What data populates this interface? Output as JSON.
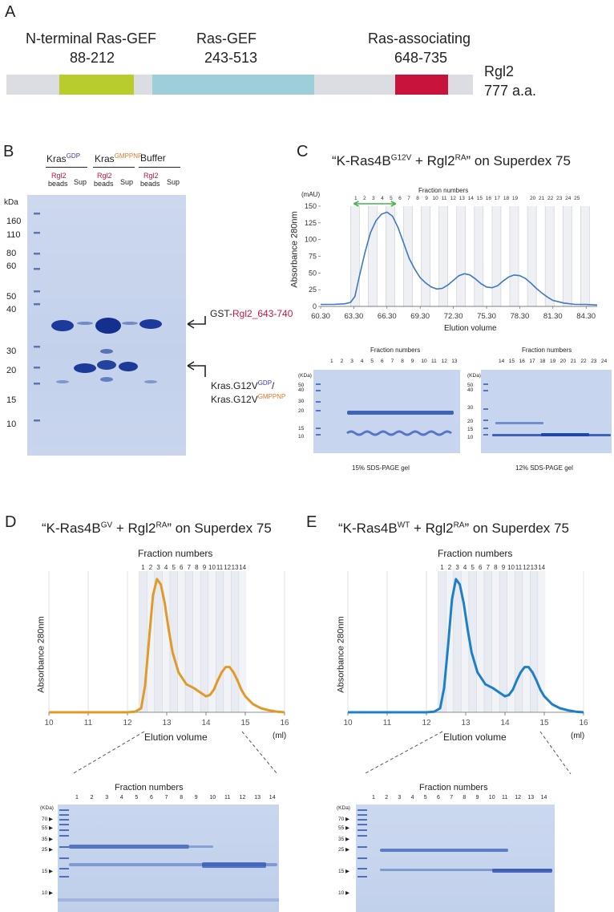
{
  "panelA": {
    "letter": "A",
    "domains": [
      {
        "name": "N-terminal Ras-GEF",
        "range": "88-212",
        "color": "#b8cc2c",
        "start": 88,
        "end": 212
      },
      {
        "name": "Ras-GEF",
        "range": "243-513",
        "color": "#9ecfd9",
        "start": 243,
        "end": 513
      },
      {
        "name": "Ras-associating",
        "range": "648-735",
        "color": "#c8143c",
        "start": 648,
        "end": 735
      }
    ],
    "protein": "Rgl2",
    "length": "777 a.a.",
    "total": 777
  },
  "panelB": {
    "letter": "B",
    "kda_label": "kDa",
    "markers": [
      "160",
      "110",
      "80",
      "60",
      "50",
      "40",
      "30",
      "20",
      "15",
      "10"
    ],
    "groups": [
      {
        "name": "Kras",
        "sup": "GDP",
        "sup_color": "#3a3ab0"
      },
      {
        "name": "Kras",
        "sup": "GMPPNP",
        "sup_color": "#e07a2a"
      },
      {
        "name": "Buffer",
        "sup": "",
        "sup_color": "#222222"
      }
    ],
    "lane_top": "Rgl2",
    "lane_bead": "beads",
    "lane_sup": "Sup",
    "annot1_prefix": "GST-",
    "annot1_red": "Rgl2_643-740",
    "annot2_line1_a": "Kras.G12V",
    "annot2_line1_sup": "GDP",
    "annot2_line1_b": "/",
    "annot2_line2_a": "Kras.G12V",
    "annot2_line2_sup": "GMPPNP"
  },
  "panelC": {
    "letter": "C",
    "title_a": "“K-Ras4B",
    "title_sup1": "G12V",
    "title_b": " + Rgl2",
    "title_sup2": "RA",
    "title_c": "” on Superdex 75",
    "y_unit": "(mAU)",
    "ylabel": "Absorbance 280nm",
    "xlabel": "Elution volume",
    "frac_title": "Fraction numbers",
    "frac_labels": [
      "1",
      "2",
      "3",
      "4",
      "5",
      "6",
      "7",
      "8",
      "9",
      "10",
      "11",
      "12",
      "13",
      "14",
      "15",
      "16",
      "17",
      "18",
      "19",
      "20",
      "21",
      "22",
      "23",
      "24",
      "25"
    ],
    "gel1_frac_title": "Fraction numbers",
    "gel1_lanes": [
      "1",
      "2",
      "3",
      "4",
      "5",
      "6",
      "7",
      "8",
      "9",
      "10",
      "11",
      "12",
      "13"
    ],
    "gel1_markers": [
      "(KDa)",
      "50",
      "40",
      "30",
      "20",
      "15",
      "10"
    ],
    "gel1_caption": "15% SDS-PAGE gel",
    "gel2_frac_title": "Fraction numbers",
    "gel2_lanes": [
      "14",
      "15",
      "16",
      "17",
      "18",
      "19",
      "20",
      "21",
      "22",
      "23",
      "24"
    ],
    "gel2_markers": [
      "(KDa)",
      "50",
      "40",
      "30",
      "20",
      "15",
      "10"
    ],
    "gel2_caption": "12% SDS-PAGE gel"
  },
  "panelD": {
    "letter": "D",
    "title_a": "“K-Ras4B",
    "title_sup1": "GV",
    "title_b": " + Rgl2",
    "title_sup2": "RA",
    "title_c": "” on Superdex 75",
    "frac_title": "Fraction numbers",
    "frac_labels": [
      "1",
      "2",
      "3",
      "4",
      "5",
      "6",
      "7",
      "8",
      "9",
      "10",
      "11",
      "12",
      "13",
      "14"
    ],
    "ylabel": "Absorbance 280nm",
    "xlabel": "Elution volume",
    "x_unit": "(ml)",
    "gel_frac_title": "Fraction numbers",
    "gel_lanes": [
      "1",
      "2",
      "3",
      "4",
      "5",
      "6",
      "7",
      "8",
      "9",
      "10",
      "11",
      "12",
      "13",
      "14"
    ],
    "gel_markers": [
      "(KDa)",
      "70",
      "55",
      "35",
      "25",
      "15",
      "10"
    ],
    "color": "#e09a2a"
  },
  "panelE": {
    "letter": "E",
    "title_a": "“K-Ras4B",
    "title_sup1": "WT",
    "title_b": " + Rgl2",
    "title_sup2": "RA",
    "title_c": "” on Superdex 75",
    "frac_title": "Fraction numbers",
    "frac_labels": [
      "1",
      "2",
      "3",
      "4",
      "5",
      "6",
      "7",
      "8",
      "9",
      "10",
      "11",
      "12",
      "13",
      "14"
    ],
    "ylabel": "Absorbance 280nm",
    "xlabel": "Elution volume",
    "x_unit": "(ml)",
    "gel_frac_title": "Fraction numbers",
    "gel_lanes": [
      "1",
      "2",
      "3",
      "4",
      "5",
      "6",
      "7",
      "8",
      "9",
      "10",
      "11",
      "12",
      "13",
      "14"
    ],
    "gel_markers": [
      "(KDa)",
      "70",
      "55",
      "35",
      "25",
      "15",
      "10"
    ],
    "color": "#1e7fc8"
  },
  "chart_data": [
    {
      "type": "line",
      "id": "C",
      "title": "“K-Ras4BG12V + Rgl2RA” on Superdex 75",
      "xlabel": "Elution volume",
      "ylabel": "Absorbance 280nm",
      "xlim": [
        60.3,
        85.3
      ],
      "ylim": [
        0,
        150
      ],
      "x_ticks": [
        "60.30",
        "63.30",
        "66.30",
        "69.30",
        "72.30",
        "75.30",
        "78.30",
        "81.30",
        "84.30"
      ],
      "y_ticks": [
        "0",
        "25",
        "50",
        "75",
        "100",
        "125",
        "150"
      ],
      "x": [
        60.3,
        61.5,
        62.5,
        63.0,
        63.4,
        63.8,
        64.3,
        64.8,
        65.3,
        65.8,
        66.3,
        66.8,
        67.3,
        67.8,
        68.3,
        68.8,
        69.3,
        69.8,
        70.3,
        70.8,
        71.3,
        71.8,
        72.3,
        72.8,
        73.3,
        73.8,
        74.3,
        74.8,
        75.3,
        75.8,
        76.3,
        76.8,
        77.3,
        77.8,
        78.3,
        78.8,
        79.3,
        79.8,
        80.3,
        80.8,
        81.3,
        82.3,
        83.3,
        84.3,
        85.3
      ],
      "y": [
        3,
        3,
        4,
        6,
        15,
        45,
        80,
        110,
        128,
        138,
        141,
        135,
        118,
        95,
        72,
        56,
        43,
        35,
        29,
        26,
        27,
        32,
        39,
        46,
        49,
        47,
        41,
        34,
        29,
        28,
        31,
        38,
        44,
        47,
        46,
        42,
        35,
        27,
        20,
        14,
        9,
        5,
        3,
        3,
        2
      ],
      "series": [
        {
          "name": "A280",
          "color": "#3d78c2"
        }
      ]
    },
    {
      "type": "line",
      "id": "D",
      "title": "“K-Ras4BGV + Rgl2RA” on Superdex 75",
      "xlabel": "Elution volume",
      "ylabel": "Absorbance 280nm",
      "xlim": [
        10,
        16
      ],
      "x_ticks": [
        "10",
        "11",
        "12",
        "13",
        "14",
        "15",
        "16"
      ],
      "x": [
        10,
        11,
        12,
        12.2,
        12.35,
        12.45,
        12.55,
        12.65,
        12.75,
        12.85,
        12.95,
        13.05,
        13.15,
        13.3,
        13.5,
        13.7,
        13.85,
        14.0,
        14.1,
        14.2,
        14.3,
        14.4,
        14.5,
        14.6,
        14.7,
        14.8,
        14.9,
        15.0,
        15.2,
        15.4,
        15.6,
        15.8,
        16
      ],
      "y": [
        0,
        0,
        0,
        0.5,
        3,
        20,
        55,
        88,
        100,
        96,
        82,
        62,
        45,
        30,
        21,
        18,
        15,
        12,
        13,
        17,
        24,
        30,
        34,
        34,
        30,
        24,
        17,
        12,
        6,
        3,
        1.5,
        0.5,
        0
      ],
      "series": [
        {
          "name": "A280",
          "color": "#e09a2a"
        }
      ]
    },
    {
      "type": "line",
      "id": "E",
      "title": "“K-Ras4BWT + Rgl2RA” on Superdex 75",
      "xlabel": "Elution volume",
      "ylabel": "Absorbance 280nm",
      "xlim": [
        10,
        16
      ],
      "x_ticks": [
        "10",
        "11",
        "12",
        "13",
        "14",
        "15",
        "16"
      ],
      "x": [
        10,
        11,
        12,
        12.2,
        12.35,
        12.45,
        12.55,
        12.65,
        12.75,
        12.85,
        12.95,
        13.05,
        13.15,
        13.3,
        13.5,
        13.7,
        13.85,
        14.0,
        14.1,
        14.2,
        14.3,
        14.4,
        14.5,
        14.6,
        14.7,
        14.8,
        14.9,
        15.0,
        15.2,
        15.4,
        15.6,
        15.8,
        16
      ],
      "y": [
        0,
        0,
        0,
        0.5,
        3,
        18,
        50,
        85,
        100,
        96,
        82,
        62,
        45,
        30,
        21,
        18,
        15,
        12,
        13,
        17,
        24,
        30,
        34,
        34,
        30,
        24,
        17,
        12,
        6,
        3,
        1.5,
        0.5,
        0
      ],
      "series": [
        {
          "name": "A280",
          "color": "#1e7fc8"
        }
      ]
    }
  ]
}
